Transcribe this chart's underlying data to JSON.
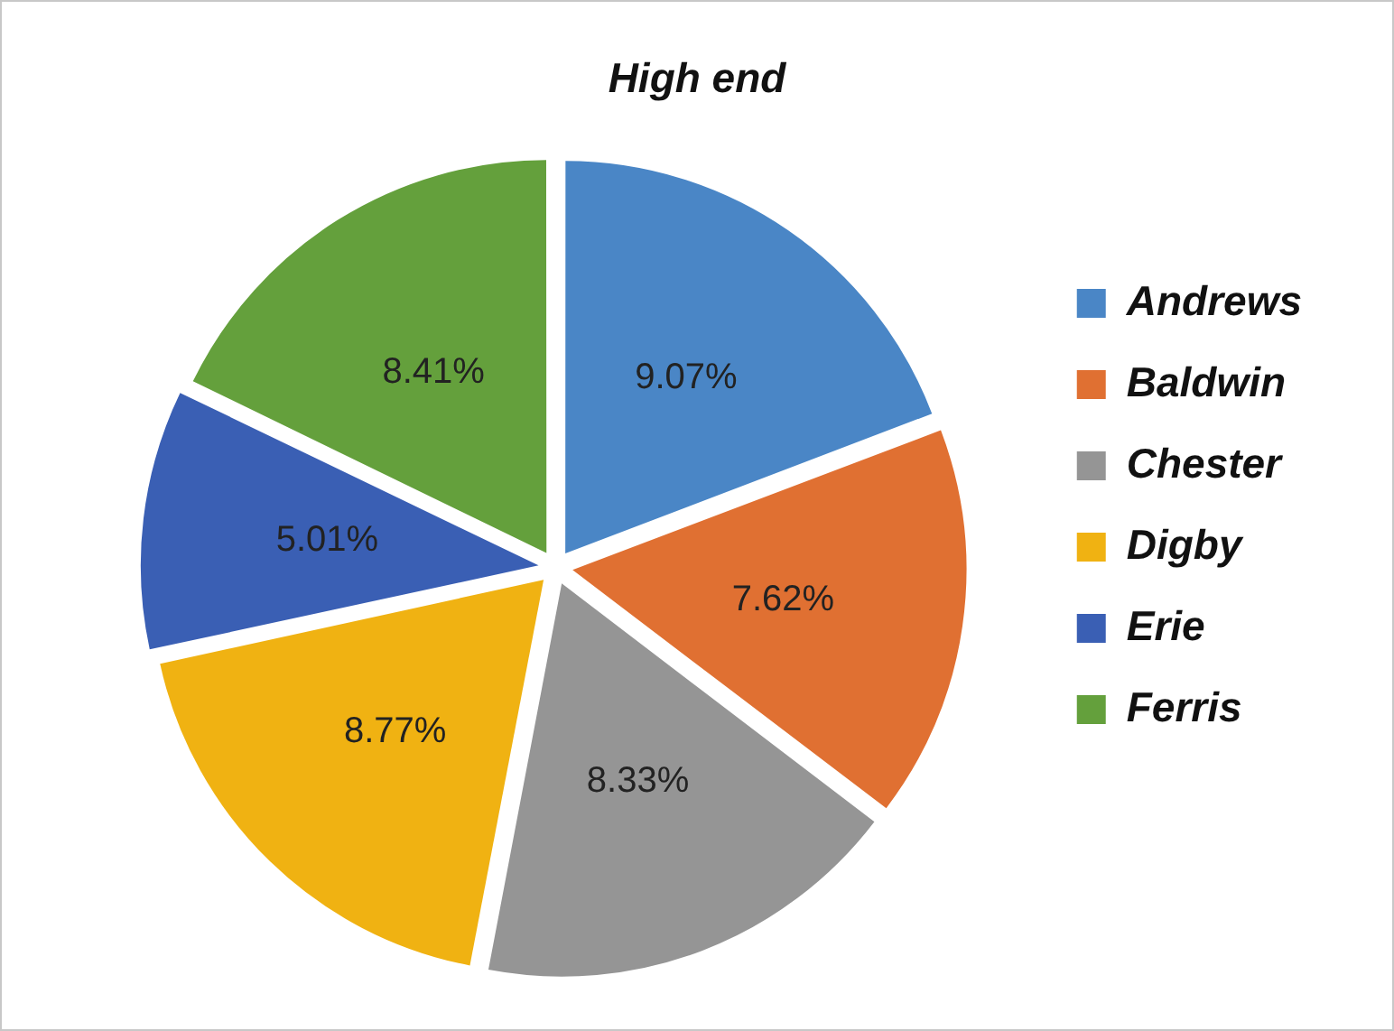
{
  "chart_data": {
    "type": "pie",
    "title": "High end",
    "categories": [
      "Andrews",
      "Baldwin",
      "Chester",
      "Digby",
      "Erie",
      "Ferris"
    ],
    "values": [
      9.07,
      7.62,
      8.33,
      8.77,
      5.01,
      8.41
    ],
    "colors": [
      "#4a86c6",
      "#e07032",
      "#959595",
      "#f0b212",
      "#3a5fb4",
      "#64a03c"
    ],
    "value_labels": [
      "9.07%",
      "7.62%",
      "8.33%",
      "8.77%",
      "5.01%",
      "8.41%"
    ],
    "legend": "right"
  }
}
